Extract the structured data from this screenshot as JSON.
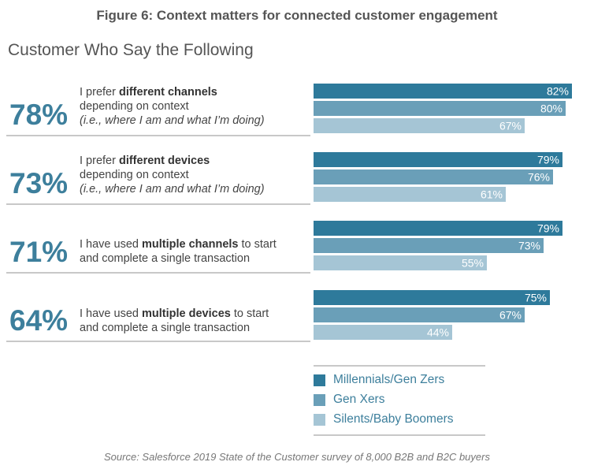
{
  "figure_title": "Figure 6: Context matters for connected customer engagement",
  "subtitle": "Customer Who Say the Following",
  "source": "Source: Salesforce 2019 State of the Customer survey of 8,000 B2B and B2C buyers",
  "colors": {
    "millennials": "#2e7a9b",
    "genx": "#6a9fb8",
    "boomers": "#a5c5d5",
    "big_pct": "#3d7f9c"
  },
  "chart_data": {
    "type": "bar",
    "orientation": "horizontal",
    "title": "",
    "xlim": [
      0,
      100
    ],
    "grid": false,
    "legend_placement": "bottom-right",
    "legend": [
      "Millennials/Gen Zers",
      "Gen Xers",
      "Silents/Baby Boomers"
    ],
    "categories": [
      {
        "overall": "78%",
        "pre": "I prefer ",
        "bold": "different channels",
        "post": "depending on context",
        "italic": "(i.e., where I am and what I’m doing)"
      },
      {
        "overall": "73%",
        "pre": "I prefer ",
        "bold": "different devices",
        "post": "depending on context",
        "italic": "(i.e., where I am and what I’m doing)"
      },
      {
        "overall": "71%",
        "pre": "I have used ",
        "bold": "multiple channels",
        "post1": " to start",
        "post": "and complete a single transaction"
      },
      {
        "overall": "64%",
        "pre": "I have used ",
        "bold": "multiple devices",
        "post1": " to start",
        "post": "and complete a single transaction"
      }
    ],
    "series": [
      {
        "name": "Millennials/Gen Zers",
        "values": [
          82,
          79,
          79,
          75
        ],
        "labels": [
          "82%",
          "79%",
          "79%",
          "75%"
        ]
      },
      {
        "name": "Gen Xers",
        "values": [
          80,
          76,
          73,
          67
        ],
        "labels": [
          "80%",
          "76%",
          "73%",
          "67%"
        ]
      },
      {
        "name": "Silents/Baby Boomers",
        "values": [
          67,
          61,
          55,
          44
        ],
        "labels": [
          "67%",
          "61%",
          "55%",
          "44%"
        ]
      }
    ]
  }
}
